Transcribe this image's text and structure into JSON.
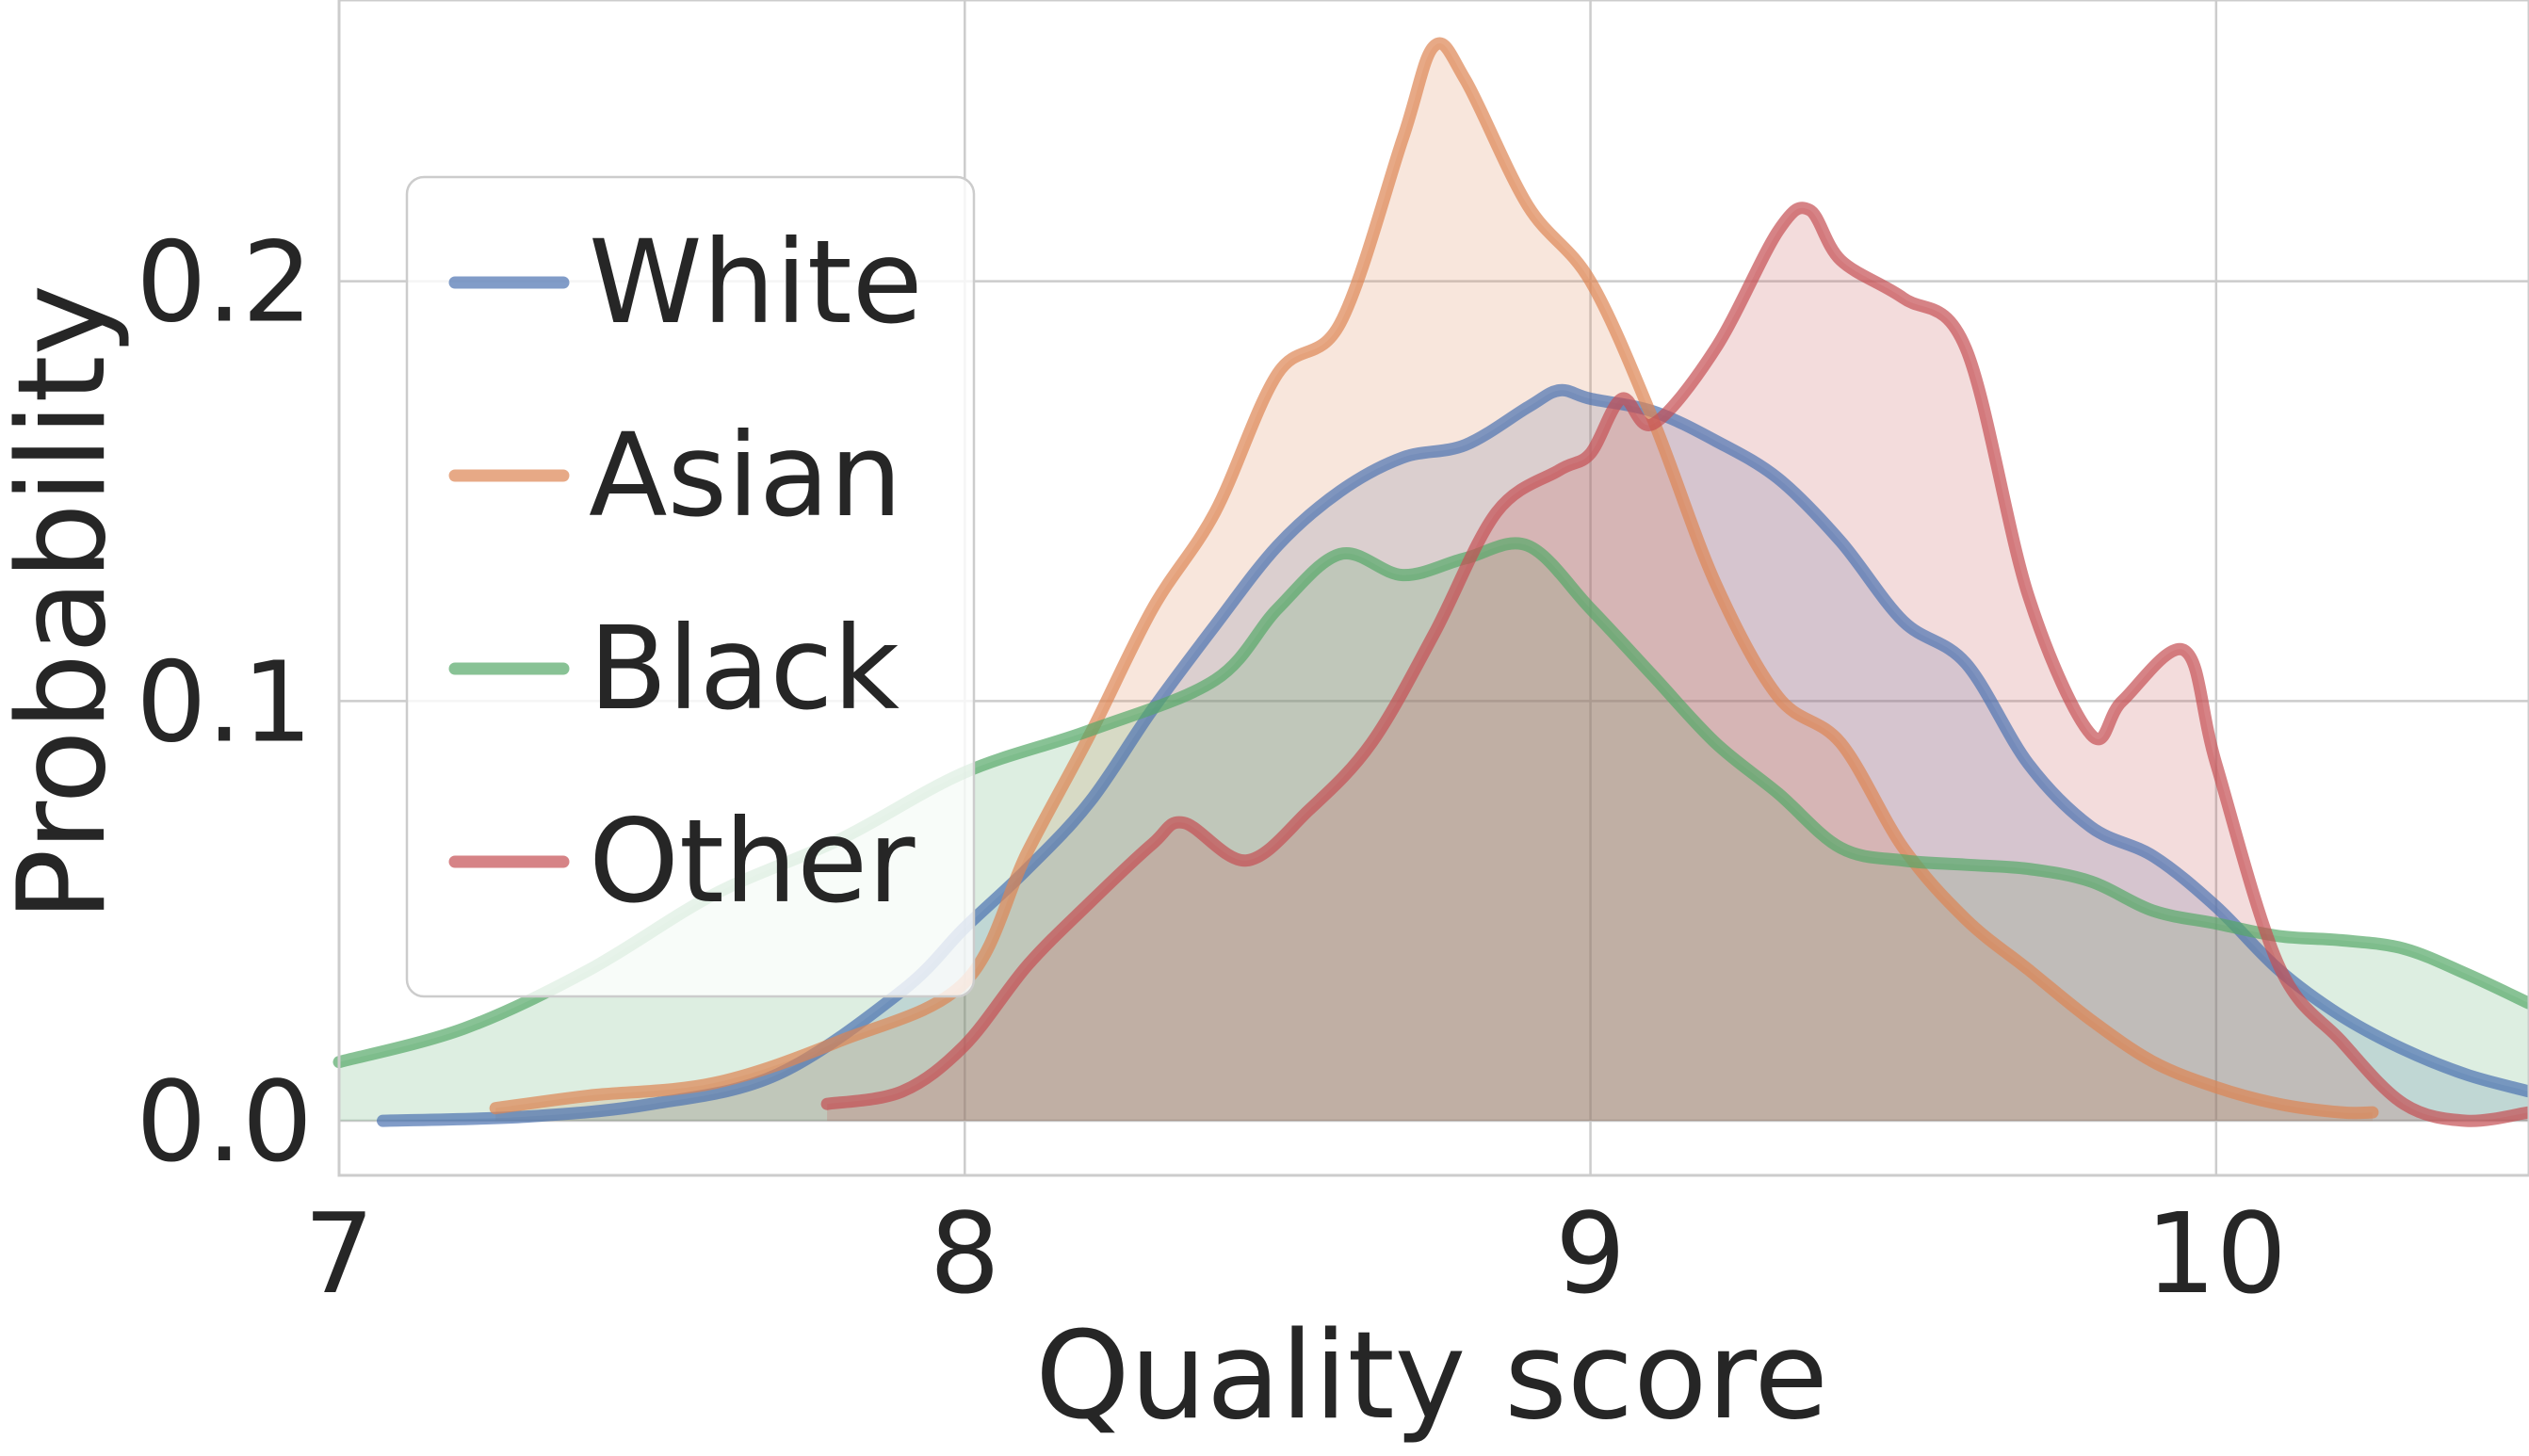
{
  "chart_data": {
    "type": "area",
    "title": "",
    "xlabel": "Quality score",
    "ylabel": "Probability",
    "xlim": [
      7.0,
      10.5
    ],
    "ylim": [
      -0.013,
      0.267
    ],
    "x_ticks": [
      7,
      8,
      9,
      10
    ],
    "x_tick_labels": [
      "7",
      "8",
      "9",
      "10"
    ],
    "y_ticks": [
      0.0,
      0.1,
      0.2
    ],
    "y_tick_labels": [
      "0.0",
      "0.1",
      "0.2"
    ],
    "grid": true,
    "legend_position": "upper-left",
    "series": [
      {
        "name": "White",
        "color": "#4c72b0",
        "x": [
          7.07,
          7.3,
          7.5,
          7.7,
          7.9,
          8.0,
          8.1,
          8.2,
          8.3,
          8.4,
          8.5,
          8.6,
          8.7,
          8.8,
          8.9,
          8.95,
          9.0,
          9.1,
          9.2,
          9.3,
          9.4,
          9.5,
          9.6,
          9.7,
          9.8,
          9.9,
          10.0,
          10.1,
          10.2,
          10.3,
          10.4,
          10.5
        ],
        "values": [
          0.0,
          0.001,
          0.004,
          0.011,
          0.031,
          0.046,
          0.06,
          0.076,
          0.098,
          0.118,
          0.137,
          0.15,
          0.158,
          0.161,
          0.17,
          0.174,
          0.172,
          0.169,
          0.162,
          0.153,
          0.138,
          0.119,
          0.109,
          0.085,
          0.07,
          0.063,
          0.051,
          0.036,
          0.025,
          0.017,
          0.011,
          0.007
        ]
      },
      {
        "name": "Asian",
        "color": "#dd8452",
        "x": [
          7.25,
          7.4,
          7.6,
          7.8,
          8.0,
          8.1,
          8.2,
          8.3,
          8.4,
          8.5,
          8.6,
          8.7,
          8.75,
          8.8,
          8.9,
          9.0,
          9.1,
          9.2,
          9.3,
          9.4,
          9.5,
          9.6,
          9.7,
          9.8,
          9.9,
          10.0,
          10.1,
          10.2,
          10.25
        ],
        "values": [
          0.003,
          0.006,
          0.009,
          0.019,
          0.033,
          0.064,
          0.092,
          0.122,
          0.145,
          0.178,
          0.19,
          0.234,
          0.256,
          0.248,
          0.218,
          0.2,
          0.167,
          0.128,
          0.101,
          0.09,
          0.065,
          0.048,
          0.036,
          0.024,
          0.014,
          0.008,
          0.004,
          0.002,
          0.002
        ]
      },
      {
        "name": "Black",
        "color": "#55a868",
        "x": [
          7.0,
          7.2,
          7.4,
          7.6,
          7.8,
          8.0,
          8.2,
          8.4,
          8.5,
          8.6,
          8.7,
          8.8,
          8.9,
          9.0,
          9.1,
          9.2,
          9.3,
          9.4,
          9.5,
          9.6,
          9.7,
          9.8,
          9.9,
          10.0,
          10.1,
          10.2,
          10.3,
          10.4,
          10.5
        ],
        "values": [
          0.014,
          0.022,
          0.036,
          0.054,
          0.067,
          0.083,
          0.093,
          0.105,
          0.122,
          0.135,
          0.13,
          0.134,
          0.137,
          0.122,
          0.106,
          0.09,
          0.078,
          0.065,
          0.062,
          0.061,
          0.06,
          0.057,
          0.05,
          0.047,
          0.044,
          0.043,
          0.041,
          0.035,
          0.028
        ]
      },
      {
        "name": "Other",
        "color": "#c44e52",
        "x": [
          7.78,
          7.9,
          8.0,
          8.1,
          8.2,
          8.3,
          8.35,
          8.45,
          8.55,
          8.65,
          8.75,
          8.85,
          8.95,
          9.0,
          9.05,
          9.1,
          9.2,
          9.3,
          9.35,
          9.4,
          9.5,
          9.6,
          9.7,
          9.8,
          9.85,
          9.95,
          10.0,
          10.1,
          10.2,
          10.3,
          10.4,
          10.5
        ],
        "values": [
          0.004,
          0.007,
          0.018,
          0.037,
          0.052,
          0.066,
          0.071,
          0.062,
          0.074,
          0.09,
          0.116,
          0.145,
          0.155,
          0.159,
          0.172,
          0.166,
          0.184,
          0.212,
          0.217,
          0.205,
          0.196,
          0.184,
          0.125,
          0.092,
          0.1,
          0.112,
          0.085,
          0.037,
          0.019,
          0.004,
          0.0,
          0.002
        ]
      }
    ]
  }
}
